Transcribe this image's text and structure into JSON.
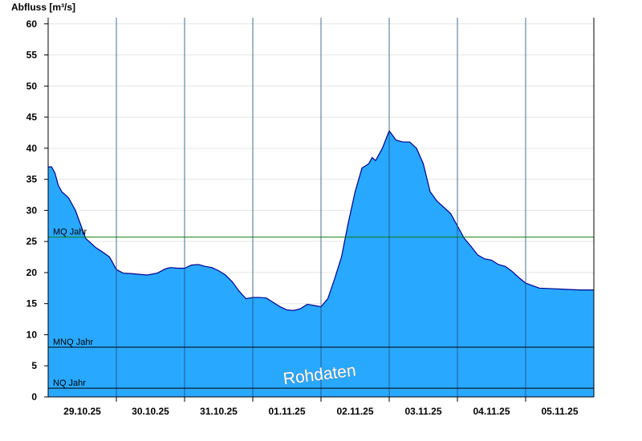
{
  "chart_data": {
    "type": "area",
    "title": "",
    "ylabel": "Abfluss [m³/s]",
    "xlabel": "",
    "ylim": [
      0,
      61
    ],
    "yticks": [
      0,
      5,
      10,
      15,
      20,
      25,
      30,
      35,
      40,
      45,
      50,
      55,
      60
    ],
    "x_start": "28.10.25 12:00",
    "x_end": "05.11.25 12:00",
    "xtick_labels": [
      "29.10.25",
      "30.10.25",
      "31.10.25",
      "01.11.25",
      "02.11.25",
      "03.11.25",
      "04.11.25",
      "05.11.25"
    ],
    "grid": true,
    "fill_color": "#29a8ff",
    "line_color": "#00008b",
    "series": [
      {
        "x_days": [
          0,
          0.05,
          0.1,
          0.15,
          0.2,
          0.25,
          0.3,
          0.35,
          0.4,
          0.5,
          0.55,
          0.6,
          0.65,
          0.7,
          0.8,
          0.9,
          1.0,
          1.1,
          1.25,
          1.45,
          1.6,
          1.7,
          1.75,
          1.8,
          1.9,
          2.0,
          2.1,
          2.2,
          2.3,
          2.4,
          2.5,
          2.6,
          2.7,
          2.8,
          2.9,
          3.0,
          3.1,
          3.2,
          3.3,
          3.4,
          3.5,
          3.6,
          3.7,
          3.8,
          3.9,
          4.0,
          4.1,
          4.2,
          4.3,
          4.4,
          4.5,
          4.6,
          4.7,
          4.75,
          4.8,
          4.9,
          5.0,
          5.1,
          5.2,
          5.3,
          5.4,
          5.5,
          5.6,
          5.7,
          5.8,
          5.9,
          6.0,
          6.1,
          6.2,
          6.3,
          6.4,
          6.5,
          6.6,
          6.7,
          6.8,
          6.9,
          7.0,
          7.2,
          7.4,
          7.6,
          7.8,
          8.0
        ],
        "values": [
          37,
          37,
          36,
          34,
          33,
          32.5,
          32,
          31,
          30,
          27,
          25.5,
          25,
          24.5,
          24,
          23.3,
          22.5,
          20.5,
          19.9,
          19.8,
          19.6,
          19.9,
          20.5,
          20.7,
          20.8,
          20.7,
          20.7,
          21.2,
          21.3,
          21.0,
          20.8,
          20.3,
          19.6,
          18.5,
          17.0,
          15.8,
          16.0,
          16.0,
          15.9,
          15.2,
          14.5,
          14.0,
          13.9,
          14.2,
          14.9,
          14.7,
          14.5,
          15.8,
          19.0,
          22.5,
          28.0,
          33.0,
          36.8,
          37.5,
          38.5,
          38.0,
          40.0,
          42.8,
          41.3,
          41.0,
          41.0,
          40.0,
          37.5,
          33.0,
          31.5,
          30.5,
          29.5,
          27.5,
          25.5,
          24.2,
          22.8,
          22.2,
          22.0,
          21.3,
          21.0,
          20.2,
          19.2,
          18.3,
          17.5,
          17.4,
          17.3,
          17.2,
          17.2
        ]
      }
    ],
    "reference_lines": [
      {
        "label": "MQ Jahr",
        "value": 25.7,
        "color": "#0a7a0a"
      },
      {
        "label": "MNQ Jahr",
        "value": 8.0,
        "color": "#000000"
      },
      {
        "label": "NQ Jahr",
        "value": 1.4,
        "color": "#000000"
      }
    ],
    "watermark": "Rohdaten"
  }
}
